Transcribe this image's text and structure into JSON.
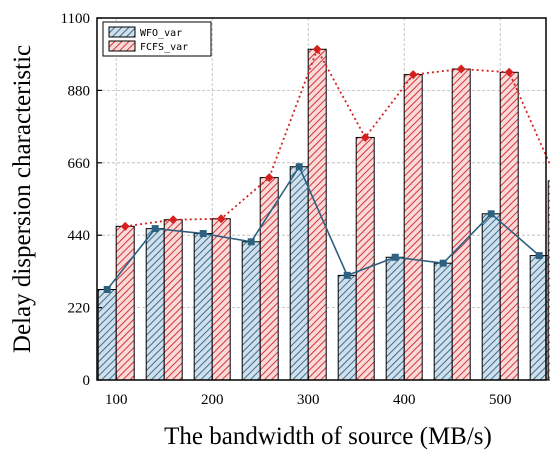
{
  "chart_data": {
    "type": "bar",
    "xlabel": "The bandwidth of source (MB/s)",
    "ylabel": "Delay dispersion characteristic",
    "x_ticks": [
      "100",
      "200",
      "300",
      "400",
      "500"
    ],
    "y_ticks": [
      "0",
      "220",
      "440",
      "660",
      "880",
      "1100"
    ],
    "ylim": [
      0,
      1100
    ],
    "xlim": [
      80,
      580
    ],
    "grid": true,
    "legend_position": "top-left",
    "categories": [
      100,
      150,
      200,
      250,
      300,
      350,
      400,
      450,
      500,
      550
    ],
    "series": [
      {
        "name": "WFO_var",
        "color": "#2e6080",
        "fill": "#cfe0ec",
        "marker": "square",
        "line_style": "solid",
        "values": [
          275,
          460,
          445,
          420,
          648,
          318,
          373,
          355,
          505,
          378
        ]
      },
      {
        "name": "FCFS_var",
        "color": "#d62020",
        "fill": "#f8dada",
        "marker": "diamond",
        "line_style": "dotted",
        "values": [
          467,
          487,
          490,
          615,
          1005,
          737,
          928,
          945,
          935,
          605
        ]
      }
    ]
  }
}
